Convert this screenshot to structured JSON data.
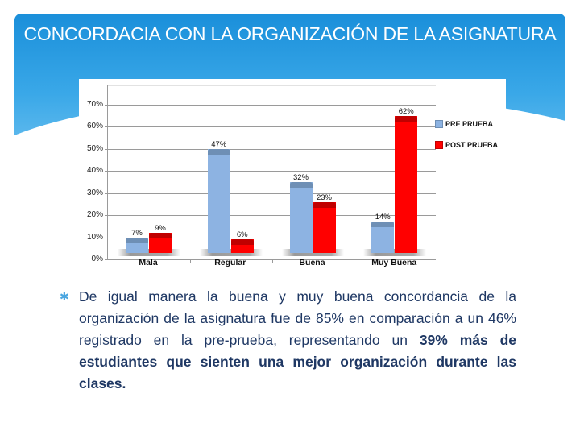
{
  "slide": {
    "title": "CONCORDACIA CON LA ORGANIZACIÓN DE LA ASIGNATURA",
    "bullet_icon": "asterisk-bullet",
    "body_text_regular": "De igual manera la buena y muy buena concordancia de la organización de la asignatura fue de 85% en comparación a un 46% registrado en la pre-prueba, representando un ",
    "body_text_bold": "39% más de estudiantes que sienten una mejor organización durante las clases.",
    "colors": {
      "header_gradient_top": "#1a8fda",
      "header_gradient_bottom": "#6cc0ef",
      "body_text": "#1f3864",
      "pre_prueba": "#8db3e2",
      "post_prueba": "#ff0000"
    }
  },
  "chart_data": {
    "type": "bar",
    "title": "",
    "xlabel": "",
    "ylabel": "",
    "categories": [
      "Mala",
      "Regular",
      "Buena",
      "Muy Buena"
    ],
    "series": [
      {
        "name": "PRE PRUEBA",
        "values": [
          7,
          47,
          32,
          14
        ],
        "labels": [
          "7%",
          "47%",
          "32%",
          "14%"
        ],
        "color": "#8db3e2"
      },
      {
        "name": "POST PRUEBA",
        "values": [
          9,
          6,
          23,
          62
        ],
        "labels": [
          "9%",
          "6%",
          "23%",
          "62%"
        ],
        "color": "#ff0000"
      }
    ],
    "yticks": [
      "0%",
      "10%",
      "20%",
      "30%",
      "40%",
      "50%",
      "60%",
      "70%"
    ],
    "ylim": [
      0,
      70
    ],
    "grid": true,
    "legend_position": "right",
    "style": "3d-clustered-column"
  }
}
